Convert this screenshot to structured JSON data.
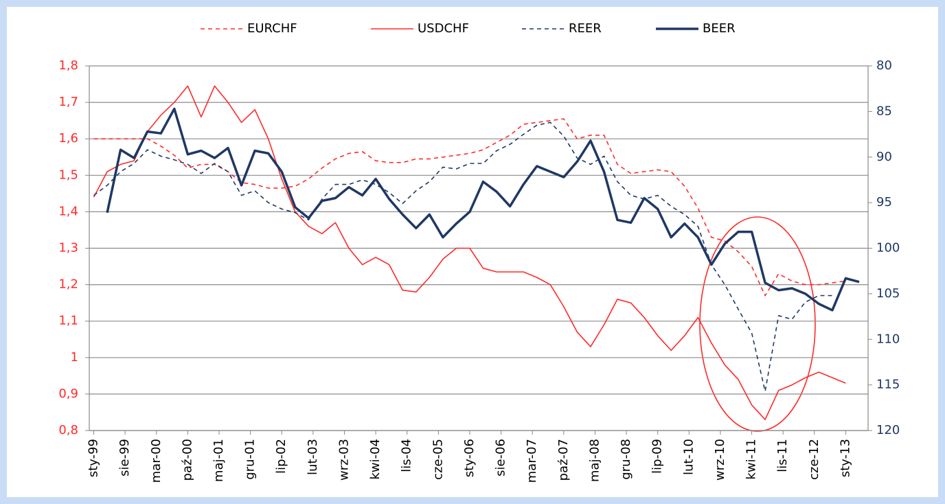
{
  "chart_data": {
    "type": "line",
    "legend": "top",
    "grid": true,
    "y2_reversed": true,
    "x": [
      0,
      3,
      6,
      9,
      12,
      15,
      18,
      21,
      24,
      27,
      30,
      33,
      36,
      39,
      42,
      45,
      48,
      51,
      54,
      57,
      60,
      63,
      66,
      69,
      72,
      75,
      78,
      81,
      84,
      87,
      90,
      93,
      96,
      99,
      102,
      105,
      108,
      111,
      114,
      117,
      120,
      123,
      126,
      129,
      132,
      135,
      138,
      141,
      144,
      147,
      150,
      153,
      156,
      159,
      162,
      165,
      168,
      171
    ],
    "xlim": [
      -1,
      173
    ],
    "xticks": [
      {
        "value": 0,
        "label": "sty-99"
      },
      {
        "value": 7,
        "label": "sie-99"
      },
      {
        "value": 14,
        "label": "mar-00"
      },
      {
        "value": 21,
        "label": "paź-00"
      },
      {
        "value": 28,
        "label": "maj-01"
      },
      {
        "value": 35,
        "label": "gru-01"
      },
      {
        "value": 42,
        "label": "lip-02"
      },
      {
        "value": 49,
        "label": "lut-03"
      },
      {
        "value": 56,
        "label": "wrz-03"
      },
      {
        "value": 63,
        "label": "kwi-04"
      },
      {
        "value": 70,
        "label": "lis-04"
      },
      {
        "value": 77,
        "label": "cze-05"
      },
      {
        "value": 84,
        "label": "sty-06"
      },
      {
        "value": 91,
        "label": "sie-06"
      },
      {
        "value": 98,
        "label": "mar-07"
      },
      {
        "value": 105,
        "label": "paź-07"
      },
      {
        "value": 112,
        "label": "maj-08"
      },
      {
        "value": 119,
        "label": "gru-08"
      },
      {
        "value": 126,
        "label": "lip-09"
      },
      {
        "value": 133,
        "label": "lut-10"
      },
      {
        "value": 140,
        "label": "wrz-10"
      },
      {
        "value": 147,
        "label": "kwi-11"
      },
      {
        "value": 154,
        "label": "lis-11"
      },
      {
        "value": 161,
        "label": "cze-12"
      },
      {
        "value": 168,
        "label": "sty-13"
      }
    ],
    "ylim": [
      0.8,
      1.8
    ],
    "yticks": [
      {
        "value": 0.8,
        "label": "0,8"
      },
      {
        "value": 0.9,
        "label": "0,9"
      },
      1,
      {
        "value": 1.1,
        "label": "1,1"
      },
      {
        "value": 1.2,
        "label": "1,2"
      },
      {
        "value": 1.3,
        "label": "1,3"
      },
      {
        "value": 1.4,
        "label": "1,4"
      },
      {
        "value": 1.5,
        "label": "1,5"
      },
      {
        "value": 1.6,
        "label": "1,6"
      },
      {
        "value": 1.7,
        "label": "1,7"
      },
      {
        "value": 1.8,
        "label": "1,8"
      }
    ],
    "y2lim": [
      80,
      120
    ],
    "y2ticks": [
      80,
      85,
      90,
      95,
      100,
      105,
      110,
      115,
      120
    ],
    "series": [
      {
        "name": "EURCHF",
        "color": "#ff2a2a",
        "line_style": "dashed",
        "values": [
          1.6,
          1.6,
          1.6,
          1.6,
          1.6,
          1.58,
          1.555,
          1.52,
          1.53,
          1.53,
          1.51,
          1.48,
          1.475,
          1.465,
          1.465,
          1.47,
          1.49,
          1.52,
          1.545,
          1.56,
          1.565,
          1.54,
          1.535,
          1.535,
          1.545,
          1.545,
          1.55,
          1.555,
          1.56,
          1.57,
          1.59,
          1.61,
          1.64,
          1.645,
          1.65,
          1.655,
          1.6,
          1.61,
          1.61,
          1.53,
          1.505,
          1.51,
          1.515,
          1.51,
          1.47,
          1.41,
          1.33,
          1.32,
          1.29,
          1.25,
          1.17,
          1.23,
          1.21,
          1.2,
          1.2,
          1.205,
          1.21,
          null
        ]
      },
      {
        "name": "USDCHF",
        "color": "#ff2a2a",
        "line_style": "solid",
        "values": [
          1.44,
          1.51,
          1.53,
          1.54,
          1.62,
          1.665,
          1.7,
          1.745,
          1.66,
          1.745,
          1.7,
          1.645,
          1.68,
          1.6,
          1.49,
          1.4,
          1.36,
          1.34,
          1.37,
          1.3,
          1.255,
          1.275,
          1.255,
          1.185,
          1.18,
          1.22,
          1.27,
          1.3,
          1.3,
          1.245,
          1.235,
          1.235,
          1.235,
          1.22,
          1.2,
          1.14,
          1.07,
          1.03,
          1.09,
          1.16,
          1.15,
          1.11,
          1.06,
          1.02,
          1.06,
          1.11,
          1.04,
          0.98,
          0.94,
          0.87,
          0.83,
          0.91,
          0.925,
          0.945,
          0.96,
          0.945,
          0.93,
          null
        ]
      },
      {
        "name": "REER",
        "color": "#1f3864",
        "line_style": "dashed",
        "axis": "y2",
        "values": [
          94.2,
          93.1,
          91.6,
          90.7,
          89.2,
          89.9,
          90.3,
          90.8,
          91.8,
          90.7,
          91.6,
          94.2,
          93.7,
          95.0,
          95.7,
          96.1,
          96.9,
          94.6,
          93.0,
          93.0,
          92.5,
          93.0,
          93.9,
          95.1,
          93.7,
          92.7,
          91.1,
          91.3,
          90.7,
          90.7,
          89.3,
          88.6,
          87.5,
          86.5,
          86.2,
          87.7,
          90.1,
          90.8,
          89.9,
          92.7,
          94.2,
          94.6,
          94.2,
          95.4,
          96.3,
          97.6,
          101.8,
          104.0,
          106.7,
          109.3,
          115.7,
          107.4,
          107.8,
          105.9,
          105.2,
          105.2,
          null,
          null
        ]
      },
      {
        "name": "BEER",
        "color": "#1f3864",
        "line_style": "solid",
        "axis": "y2",
        "values": [
          null,
          96.1,
          89.2,
          90.1,
          87.2,
          87.4,
          84.7,
          89.7,
          89.3,
          90.1,
          89.0,
          93.1,
          89.3,
          89.6,
          91.6,
          95.5,
          96.7,
          94.8,
          94.5,
          93.3,
          94.2,
          92.4,
          94.6,
          96.3,
          97.8,
          96.3,
          98.8,
          97.3,
          96.0,
          92.7,
          93.8,
          95.4,
          93.0,
          91.0,
          91.6,
          92.2,
          90.5,
          88.2,
          91.6,
          96.9,
          97.2,
          94.5,
          95.7,
          98.8,
          97.3,
          98.8,
          101.8,
          99.5,
          98.2,
          98.2,
          103.8,
          104.6,
          104.4,
          105.0,
          106.1,
          106.8,
          103.3,
          103.7
        ]
      }
    ]
  }
}
